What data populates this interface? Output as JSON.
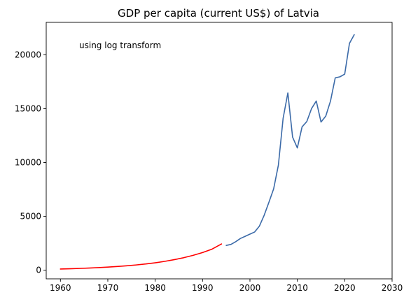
{
  "chart_data": {
    "type": "line",
    "title": "GDP per capita (current US$) of Latvia",
    "annotation": "using log transform",
    "xlabel": "",
    "ylabel": "",
    "xlim": [
      1957,
      2030
    ],
    "ylim": [
      -800,
      23000
    ],
    "x_ticks": [
      1960,
      1970,
      1980,
      1990,
      2000,
      2010,
      2020,
      2030
    ],
    "y_ticks": [
      0,
      5000,
      10000,
      15000,
      20000
    ],
    "grid": false,
    "colors": {
      "modeled": "#ff0000",
      "observed": "#3b6aa8"
    },
    "series": [
      {
        "values_x": [
          1960,
          1962,
          1964,
          1966,
          1968,
          1970,
          1972,
          1974,
          1976,
          1978,
          1980,
          1982,
          1984,
          1986,
          1988,
          1990,
          1992,
          1994
        ],
        "values_y": [
          110,
          135,
          165,
          200,
          240,
          290,
          345,
          410,
          490,
          580,
          690,
          820,
          980,
          1160,
          1380,
          1640,
          1960,
          2440
        ]
      },
      {
        "values_x": [
          1995,
          1996,
          1997,
          1998,
          1999,
          2000,
          2001,
          2002,
          2003,
          2004,
          2005,
          2006,
          2007,
          2008,
          2009,
          2010,
          2011,
          2012,
          2013,
          2014,
          2015,
          2016,
          2017,
          2018,
          2019,
          2020,
          2021,
          2022
        ],
        "values_y": [
          2300,
          2400,
          2650,
          2950,
          3150,
          3350,
          3550,
          4100,
          5100,
          6300,
          7550,
          9750,
          14100,
          16450,
          12350,
          11350,
          13300,
          13800,
          15000,
          15700,
          13750,
          14300,
          15700,
          17850,
          17950,
          18200,
          21050,
          21850
        ]
      }
    ]
  }
}
